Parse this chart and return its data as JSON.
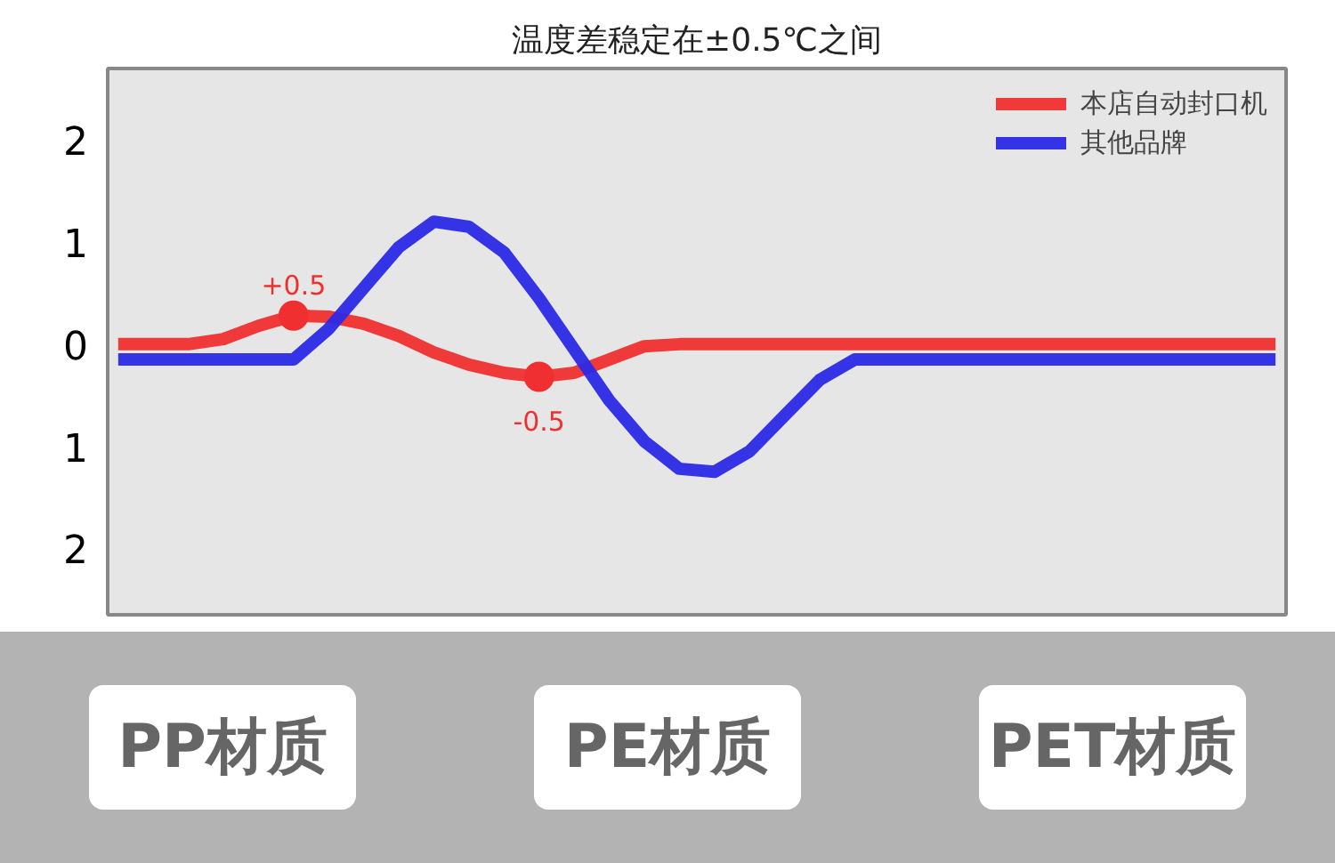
{
  "chart_data": {
    "type": "line",
    "title": "温度差稳定在±0.5℃之间",
    "categories": [
      null,
      null,
      null,
      null,
      null,
      null,
      null,
      null,
      null,
      null,
      null,
      null,
      null,
      null,
      null,
      null,
      null,
      null,
      null,
      null,
      null,
      null,
      null,
      null,
      null,
      null,
      null,
      null,
      null,
      null,
      null,
      null,
      null,
      null
    ],
    "series": [
      {
        "name": "本店自动封口机",
        "color": "#f03030",
        "values": [
          0,
          0,
          0,
          0.05,
          0.18,
          0.28,
          0.27,
          0.2,
          0.08,
          -0.08,
          -0.2,
          -0.28,
          -0.32,
          -0.28,
          -0.15,
          -0.02,
          0,
          0,
          0,
          0,
          0,
          0,
          0,
          0,
          0,
          0,
          0,
          0,
          0,
          0,
          0,
          0,
          0,
          0
        ]
      },
      {
        "name": "其他品牌",
        "color": "#2a2ae6",
        "values": [
          -0.15,
          -0.15,
          -0.15,
          -0.15,
          -0.15,
          -0.15,
          0.15,
          0.55,
          0.95,
          1.2,
          1.15,
          0.9,
          0.45,
          -0.05,
          -0.55,
          -0.95,
          -1.22,
          -1.25,
          -1.05,
          -0.7,
          -0.35,
          -0.15,
          -0.15,
          -0.15,
          -0.15,
          -0.15,
          -0.15,
          -0.15,
          -0.15,
          -0.15,
          -0.15,
          -0.15,
          -0.15,
          -0.15
        ]
      },
      {
        "type": "scatter",
        "color": "#f03030",
        "values": [
          null,
          null,
          null,
          null,
          null,
          0.28,
          null,
          null,
          null,
          null,
          null,
          null,
          -0.32,
          null,
          null,
          null,
          null,
          null,
          null,
          null,
          null,
          null,
          null,
          null,
          null,
          null,
          null,
          null,
          null,
          null,
          null,
          null,
          null,
          null
        ]
      }
    ],
    "ylim": [
      -2.65,
      2.7
    ],
    "yticks": [
      {
        "value": 2,
        "label": "2"
      },
      {
        "value": 1,
        "label": "1"
      },
      {
        "value": 0,
        "label": "0"
      },
      {
        "value": -1,
        "label": "1"
      },
      {
        "value": -2,
        "label": "2"
      }
    ],
    "tick_labels": "y",
    "grid": false,
    "legend": "top right",
    "line_style": "solid",
    "annotations": [
      "+0.5",
      "-0.5",
      "PP材质",
      "PE材质",
      "PET材质"
    ]
  }
}
